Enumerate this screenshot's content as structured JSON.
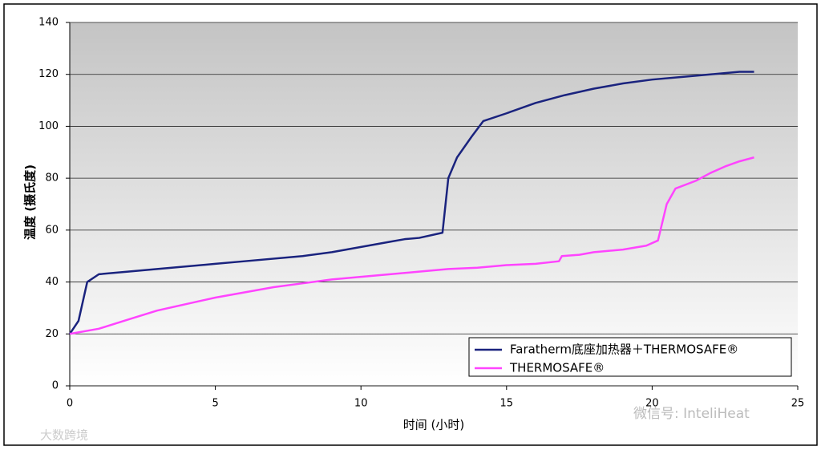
{
  "chart_data": {
    "type": "line",
    "x_label": "时间 (小时)",
    "y_label": "温度 (摄氏度)",
    "xlim": [
      0,
      25
    ],
    "xticks": [
      0,
      5,
      10,
      15,
      20,
      25
    ],
    "ylim": [
      0,
      140
    ],
    "yticks": [
      0,
      20,
      40,
      60,
      80,
      100,
      120,
      140
    ],
    "grid": true,
    "legend": "lower right",
    "series": [
      {
        "name": "Faratherm底座加热器＋THERMOSAFE®",
        "color": "#1a237e",
        "x": [
          0,
          0.3,
          0.6,
          1,
          2,
          3,
          5,
          6,
          8,
          9,
          10,
          11,
          11.5,
          12,
          12.8,
          13,
          13.3,
          13.8,
          14.2,
          15,
          16,
          17,
          18,
          19,
          20,
          21,
          22,
          23,
          23.5
        ],
        "values": [
          20,
          25,
          40,
          43,
          44,
          45,
          47,
          48,
          50,
          51.5,
          53.5,
          55.5,
          56.5,
          57,
          59,
          80,
          88,
          96,
          102,
          105,
          109,
          112,
          114.5,
          116.5,
          118,
          119,
          120,
          121,
          121
        ]
      },
      {
        "name": "THERMOSAFE®",
        "color": "#ff44ff",
        "x": [
          0,
          1,
          2,
          3,
          4,
          5,
          6,
          7,
          8,
          9,
          10,
          11,
          12,
          13,
          14,
          15,
          16,
          16.8,
          16.9,
          17.5,
          18,
          19,
          19.8,
          20.2,
          20.5,
          20.8,
          21.5,
          22,
          22.5,
          23,
          23.5
        ],
        "values": [
          20,
          22,
          25.5,
          29,
          31.5,
          34,
          36,
          38,
          39.5,
          41,
          42,
          43,
          44,
          45,
          45.5,
          46.5,
          47,
          48,
          50,
          50.5,
          51.5,
          52.5,
          54,
          56,
          70,
          76,
          79,
          82,
          84.5,
          86.5,
          88
        ]
      }
    ]
  },
  "watermarks": [
    "微信号: InteliHeat",
    "大数跨境"
  ]
}
